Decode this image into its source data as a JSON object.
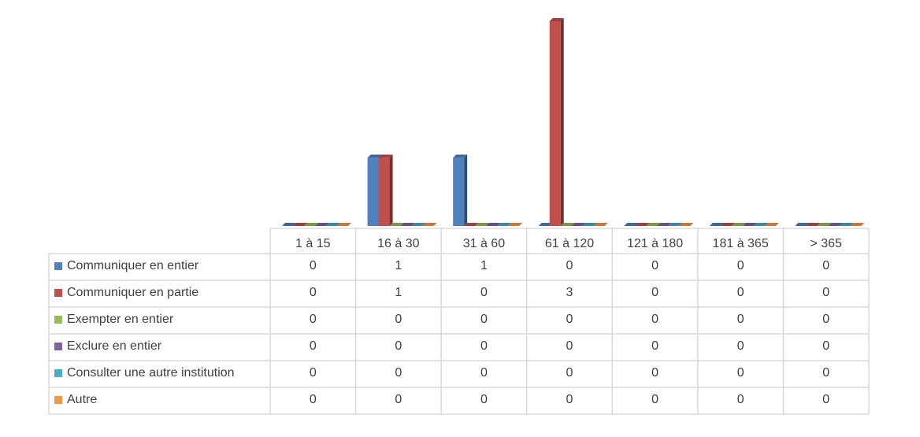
{
  "chart_data": {
    "type": "bar3d",
    "categories": [
      "1 à 15",
      "16 à 30",
      "31 à 60",
      "61 à 120",
      "121 à 180",
      "181 à 365",
      "> 365"
    ],
    "series": [
      {
        "name": "Communiquer en entier",
        "color": "#4f81bd",
        "values": [
          0,
          1,
          1,
          0,
          0,
          0,
          0
        ]
      },
      {
        "name": "Communiquer en partie",
        "color": "#c0504d",
        "values": [
          0,
          1,
          0,
          3,
          0,
          0,
          0
        ]
      },
      {
        "name": "Exempter en entier",
        "color": "#9bbb59",
        "values": [
          0,
          0,
          0,
          0,
          0,
          0,
          0
        ]
      },
      {
        "name": "Exclure en entier",
        "color": "#8064a2",
        "values": [
          0,
          0,
          0,
          0,
          0,
          0,
          0
        ]
      },
      {
        "name": "Consulter une autre institution",
        "color": "#4bacc6",
        "values": [
          0,
          0,
          0,
          0,
          0,
          0,
          0
        ]
      },
      {
        "name": "Autre",
        "color": "#f79646",
        "values": [
          0,
          0,
          0,
          0,
          0,
          0,
          0
        ]
      }
    ],
    "ylim": [
      0,
      3
    ]
  }
}
